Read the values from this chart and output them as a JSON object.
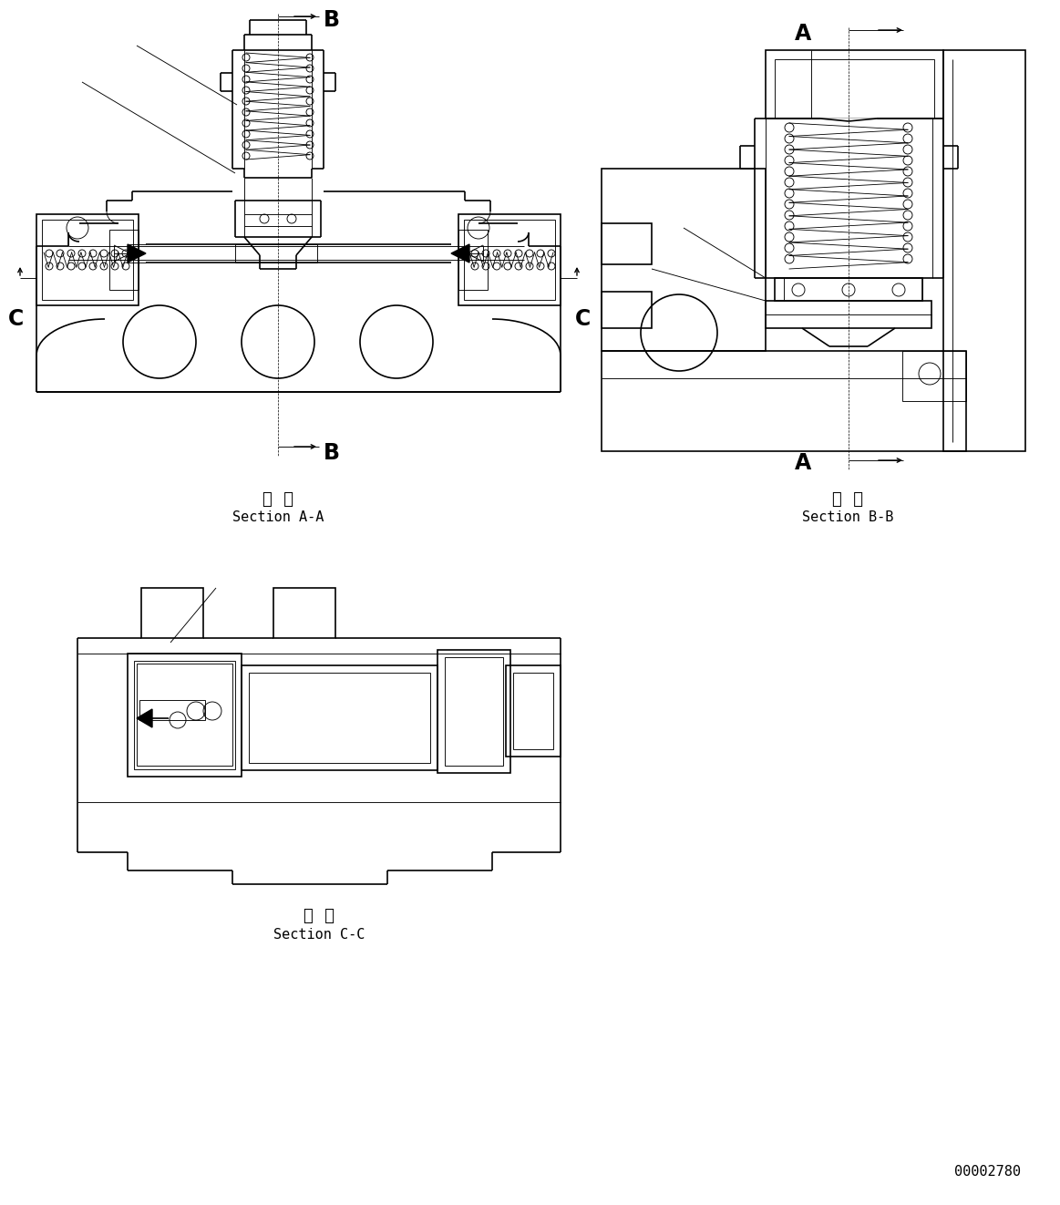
{
  "bg": "#ffffff",
  "lc": "#000000",
  "lw": 1.2,
  "tlw": 0.65,
  "slw": 0.6,
  "kanji_aa": "断  面",
  "eng_aa": "Section A-A",
  "kanji_bb": "断  面",
  "eng_bb": "Section B-B",
  "kanji_cc": "断  面",
  "eng_cc": "Section C-C",
  "drw_num": "00002780"
}
